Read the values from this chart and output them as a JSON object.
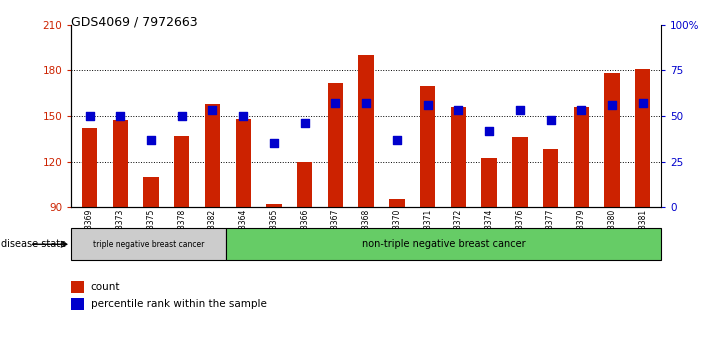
{
  "title": "GDS4069 / 7972663",
  "samples": [
    "GSM678369",
    "GSM678373",
    "GSM678375",
    "GSM678378",
    "GSM678382",
    "GSM678364",
    "GSM678365",
    "GSM678366",
    "GSM678367",
    "GSM678368",
    "GSM678370",
    "GSM678371",
    "GSM678372",
    "GSM678374",
    "GSM678376",
    "GSM678377",
    "GSM678379",
    "GSM678380",
    "GSM678381"
  ],
  "counts": [
    142,
    147,
    110,
    137,
    158,
    148,
    92,
    120,
    172,
    190,
    95,
    170,
    156,
    122,
    136,
    128,
    156,
    178,
    181
  ],
  "percentiles": [
    50,
    50,
    37,
    50,
    53,
    50,
    35,
    46,
    57,
    57,
    37,
    56,
    53,
    42,
    53,
    48,
    53,
    56,
    57
  ],
  "bar_color": "#cc2200",
  "dot_color": "#0000cc",
  "ylim_left": [
    90,
    210
  ],
  "ylim_right": [
    0,
    100
  ],
  "yticks_left": [
    90,
    120,
    150,
    180,
    210
  ],
  "yticks_right": [
    0,
    25,
    50,
    75,
    100
  ],
  "ytick_labels_right": [
    "0",
    "25",
    "50",
    "75",
    "100%"
  ],
  "hlines": [
    120,
    150,
    180
  ],
  "group1_label": "triple negative breast cancer",
  "group2_label": "non-triple negative breast cancer",
  "group1_count": 5,
  "disease_state_label": "disease state",
  "legend_count_label": "count",
  "legend_pct_label": "percentile rank within the sample",
  "bg_plot": "#ffffff",
  "bg_group1": "#cccccc",
  "bg_group2": "#66cc66",
  "bar_width": 0.5,
  "dot_size": 40
}
